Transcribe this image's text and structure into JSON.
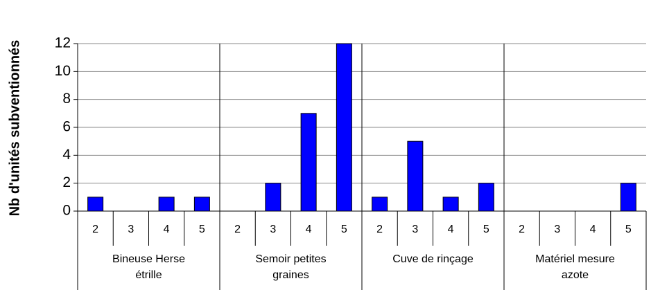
{
  "chart_data": {
    "type": "bar",
    "y_label": "Nb d'unités subventionnés",
    "categories": [
      "2",
      "3",
      "4",
      "5",
      "2",
      "3",
      "4",
      "5",
      "2",
      "3",
      "4",
      "5",
      "2",
      "3",
      "4",
      "5"
    ],
    "groups": [
      "Bineuse Herse étrille",
      "Semoir petites graines",
      "Cuve de rinçage",
      "Matériel mesure azote"
    ],
    "values": [
      1,
      0,
      1,
      1,
      0,
      2,
      7,
      12,
      1,
      5,
      1,
      2,
      0,
      0,
      0,
      2
    ],
    "color": "#0000ff",
    "ylim": [
      0,
      12
    ],
    "yticks": [
      0,
      2,
      4,
      6,
      8,
      10,
      12
    ],
    "grid": true
  }
}
